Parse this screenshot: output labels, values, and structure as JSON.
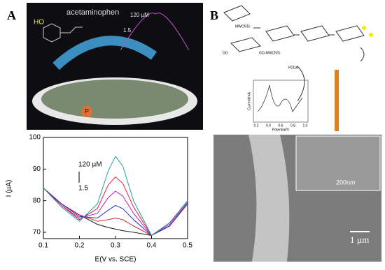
{
  "panel_a": {
    "label": "A",
    "molecule": "acetaminophen",
    "group": "HO",
    "inset_high": "120 µM",
    "inset_low": "1.5",
    "marker": "P"
  },
  "chart_data": {
    "type": "line",
    "ylabel": "I (µA)",
    "xlabel": "E(V vs. SCE)",
    "annotations": [
      "120 µM",
      "1.5"
    ],
    "x": [
      0.1,
      0.15,
      0.2,
      0.25,
      0.28,
      0.3,
      0.32,
      0.35,
      0.4,
      0.45,
      0.5
    ],
    "series": [
      {
        "color": "#111111",
        "values": [
          84,
          79,
          75.5,
          72.5,
          71.5,
          71,
          70.5,
          70,
          69,
          72,
          79
        ]
      },
      {
        "color": "#d62020",
        "values": [
          84,
          79,
          75.5,
          73.5,
          74,
          74.5,
          74,
          72,
          69,
          72,
          79
        ]
      },
      {
        "color": "#2030d0",
        "values": [
          84,
          79,
          75,
          74.5,
          77,
          78.5,
          77.5,
          74,
          69,
          72,
          79.5
        ]
      },
      {
        "color": "#c020c0",
        "values": [
          84,
          78.5,
          74.5,
          76,
          81,
          83,
          81.5,
          76,
          69,
          72.5,
          80
        ]
      },
      {
        "color": "#e02040",
        "values": [
          84,
          78.5,
          74,
          77.5,
          85,
          87.5,
          85.5,
          78,
          69,
          73,
          80
        ]
      },
      {
        "color": "#20a0a0",
        "values": [
          84,
          78,
          73.5,
          79,
          89.5,
          94,
          91,
          80,
          69,
          73,
          80
        ]
      }
    ],
    "xlim": [
      0.1,
      0.5
    ],
    "ylim": [
      68,
      100
    ],
    "xticks": [
      0.1,
      0.2,
      0.3,
      0.4,
      0.5
    ],
    "yticks": [
      70,
      80,
      90,
      100
    ]
  },
  "panel_b": {
    "label": "B",
    "schematic": [
      "MWCNTs",
      "GO",
      "GO-MWCNTs",
      "PDDA"
    ],
    "inset_ylabel": "Current/mA",
    "inset_xlabel": "Potential/V",
    "inset_ticks": [
      "0.2",
      "0.4",
      "0.6",
      "0.8",
      "1.0"
    ],
    "scale_small": "200nm",
    "scale_large": "1 µm"
  }
}
